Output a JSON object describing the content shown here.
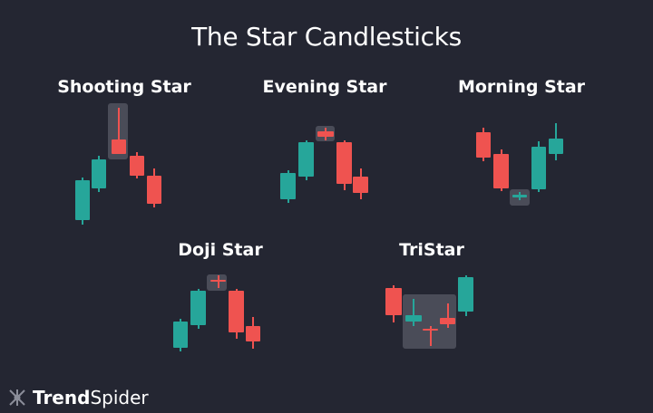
{
  "title": "The Star Candlesticks",
  "patterns": [
    {
      "name": "Shooting Star"
    },
    {
      "name": "Evening Star"
    },
    {
      "name": "Morning Star"
    },
    {
      "name": "Doji Star"
    },
    {
      "name": "TriStar"
    }
  ],
  "colors": {
    "bullish": "#26a69a",
    "bearish": "#ef5350",
    "highlight": "#4a4c58",
    "background": "#242632"
  },
  "logo": {
    "bold": "Trend",
    "regular": "Spider",
    "icon": "spider-icon"
  }
}
